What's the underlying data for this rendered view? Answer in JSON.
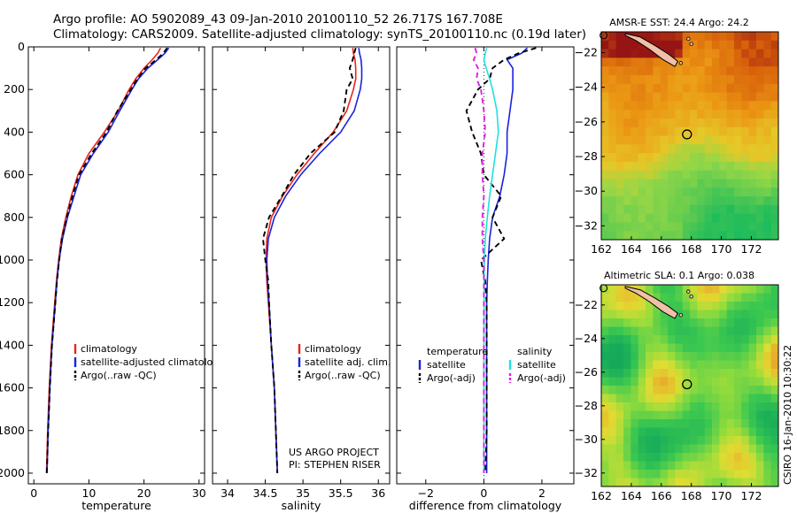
{
  "figure": {
    "title_line1": "Argo profile: AO 5902089_43 09-Jan-2010 20100110_52 26.717S 167.708E",
    "title_line2": "Climatology: CARS2009. Satellite-adjusted climatology: synTS_20100110.nc (0.19d later)",
    "credit_line1": "US ARGO PROJECT",
    "credit_line2": "PI: STEPHEN RISER",
    "side_stamp": "CSIRO 16-Jan-2010 10:30:22"
  },
  "colors": {
    "climatology": "#e8241a",
    "satellite": "#1a22dd",
    "argo": "#000000",
    "salinity_satellite": "#20e0e0",
    "salinity_argo": "#e020e0",
    "land": "#f0c0a8",
    "marker": "#000000"
  },
  "chart_data": [
    {
      "type": "line",
      "name": "temperature-profile",
      "title": "",
      "xlabel": "temperature",
      "ylabel": "",
      "xlim": [
        -1,
        31
      ],
      "ylim": [
        2050,
        0
      ],
      "y_reversed": true,
      "xticks": [
        0,
        10,
        20,
        30
      ],
      "yticks": [
        0,
        200,
        400,
        600,
        800,
        1000,
        1200,
        1400,
        1600,
        1800,
        2000
      ],
      "legend": [
        "climatology",
        "satellite-adjusted climatology",
        "Argo(..raw -QC)"
      ],
      "legend_position": "lower-right",
      "y": [
        5,
        30,
        60,
        100,
        150,
        200,
        300,
        400,
        500,
        600,
        700,
        800,
        900,
        1000,
        1100,
        1200,
        1400,
        1600,
        1800,
        2000
      ],
      "series": [
        {
          "name": "climatology",
          "color_key": "climatology",
          "dash": false,
          "x": [
            23.0,
            22.5,
            21.5,
            20.0,
            18.5,
            17.3,
            15.3,
            12.8,
            10.0,
            8.0,
            6.8,
            5.8,
            5.0,
            4.5,
            4.1,
            3.8,
            3.2,
            2.8,
            2.5,
            2.3
          ]
        },
        {
          "name": "satellite",
          "color_key": "satellite",
          "dash": false,
          "x": [
            24.5,
            23.8,
            22.5,
            20.7,
            19.0,
            17.8,
            15.6,
            13.5,
            10.8,
            8.5,
            7.3,
            6.1,
            5.2,
            4.6,
            4.2,
            3.9,
            3.3,
            2.9,
            2.6,
            2.4
          ]
        },
        {
          "name": "Argo",
          "color_key": "argo",
          "dash": true,
          "x": [
            24.2,
            23.5,
            22.2,
            20.3,
            18.8,
            17.6,
            15.2,
            13.2,
            10.5,
            8.2,
            7.0,
            6.0,
            5.1,
            4.6,
            4.2,
            3.9,
            3.3,
            2.9,
            2.6,
            2.35
          ]
        }
      ]
    },
    {
      "type": "line",
      "name": "salinity-profile",
      "title": "",
      "xlabel": "salinity",
      "ylabel": "",
      "xlim": [
        33.8,
        36.15
      ],
      "ylim": [
        2050,
        0
      ],
      "y_reversed": true,
      "xticks": [
        34,
        34.5,
        35,
        35.5,
        36
      ],
      "legend": [
        "climatology",
        "satellite adj. clim.",
        "Argo(..raw -QC)"
      ],
      "legend_position": "lower-right",
      "y": [
        5,
        30,
        60,
        100,
        150,
        200,
        300,
        400,
        500,
        600,
        700,
        800,
        900,
        1000,
        1100,
        1200,
        1400,
        1600,
        1800,
        2000
      ],
      "series": [
        {
          "name": "climatology",
          "color_key": "climatology",
          "dash": false,
          "x": [
            35.66,
            35.67,
            35.69,
            35.7,
            35.7,
            35.67,
            35.58,
            35.4,
            35.15,
            34.92,
            34.73,
            34.58,
            34.52,
            34.51,
            34.52,
            34.54,
            34.58,
            34.62,
            34.64,
            34.66
          ]
        },
        {
          "name": "satellite",
          "color_key": "satellite",
          "dash": false,
          "x": [
            35.74,
            35.75,
            35.77,
            35.78,
            35.78,
            35.76,
            35.68,
            35.5,
            35.22,
            34.97,
            34.77,
            34.62,
            34.54,
            34.52,
            34.53,
            34.55,
            34.58,
            34.62,
            34.64,
            34.66
          ]
        },
        {
          "name": "Argo",
          "color_key": "argo",
          "dash": true,
          "x": [
            35.7,
            35.68,
            35.66,
            35.62,
            35.66,
            35.58,
            35.54,
            35.42,
            35.1,
            34.88,
            34.72,
            34.55,
            34.47,
            34.5,
            34.54,
            34.55,
            34.58,
            34.62,
            34.64,
            34.66
          ]
        }
      ]
    },
    {
      "type": "line",
      "name": "difference-profile",
      "title": "",
      "xlabel": "difference from climatology",
      "ylabel": "",
      "xlim": [
        -3.0,
        3.1
      ],
      "ylim": [
        2050,
        0
      ],
      "y_reversed": true,
      "xticks": [
        -2,
        0,
        2
      ],
      "legend": [
        "temperature",
        "satellite",
        "Argo(-adj)",
        "salinity",
        "satellite",
        "Argo(-adj)"
      ],
      "legend_position": "lower",
      "y": [
        5,
        30,
        60,
        100,
        150,
        200,
        300,
        400,
        500,
        600,
        700,
        800,
        900,
        1000,
        1100,
        1200,
        1400,
        1600,
        1800,
        2000
      ],
      "series": [
        {
          "name": "temperature satellite",
          "color_key": "satellite",
          "dash": false,
          "x": [
            1.5,
            1.3,
            0.8,
            1.0,
            1.0,
            1.0,
            0.9,
            0.8,
            0.8,
            0.7,
            0.55,
            0.3,
            0.2,
            0.15,
            0.12,
            0.1,
            0.1,
            0.1,
            0.1,
            0.1
          ]
        },
        {
          "name": "temperature Argo",
          "color_key": "argo",
          "dash": true,
          "x": [
            1.8,
            1.2,
            0.7,
            0.3,
            0.2,
            -0.2,
            -0.6,
            -0.4,
            -0.1,
            0.0,
            0.6,
            0.3,
            0.7,
            -0.1,
            0.05,
            0.1,
            0.1,
            0.1,
            0.1,
            0.05
          ]
        },
        {
          "name": "salinity satellite",
          "color_key": "salinity_satellite",
          "dash": false,
          "x": [
            0.1,
            0.05,
            0.0,
            0.08,
            0.2,
            0.3,
            0.45,
            0.5,
            0.4,
            0.3,
            0.2,
            0.12,
            0.05,
            0.02,
            0.01,
            0.01,
            0.0,
            0.0,
            0.0,
            0.0
          ]
        },
        {
          "name": "salinity Argo",
          "color_key": "salinity_argo",
          "dash": true,
          "x": [
            -0.3,
            -0.25,
            -0.35,
            -0.2,
            -0.25,
            -0.1,
            0.0,
            0.05,
            -0.05,
            -0.05,
            0.0,
            -0.05,
            -0.05,
            0.0,
            0.0,
            0.0,
            0.0,
            0.0,
            0.0,
            0.0
          ]
        }
      ]
    },
    {
      "type": "heatmap",
      "name": "sst-map",
      "title": "AMSR-E SST: 24.4 Argo: 24.2",
      "xlabel": "",
      "ylabel": "",
      "xlim": [
        162,
        173.8
      ],
      "ylim": [
        -32.8,
        -20.8
      ],
      "xticks": [
        162,
        164,
        166,
        168,
        170,
        172
      ],
      "yticks": [
        -22,
        -24,
        -26,
        -28,
        -30,
        -32
      ],
      "colormap": "sst",
      "argo_position": [
        167.71,
        -26.72
      ],
      "grid_cols": 24,
      "grid_rows": 24,
      "field": "sst"
    },
    {
      "type": "heatmap",
      "name": "sla-map",
      "title": "Altimetric SLA: 0.1 Argo: 0.038",
      "xlabel": "",
      "ylabel": "",
      "xlim": [
        162,
        173.8
      ],
      "ylim": [
        -32.8,
        -20.8
      ],
      "xticks": [
        162,
        164,
        166,
        168,
        170,
        172
      ],
      "yticks": [
        -22,
        -24,
        -26,
        -28,
        -30,
        -32
      ],
      "colormap": "sla",
      "argo_position": [
        167.71,
        -26.72
      ],
      "grid_cols": 24,
      "grid_rows": 24,
      "field": "sla"
    }
  ]
}
